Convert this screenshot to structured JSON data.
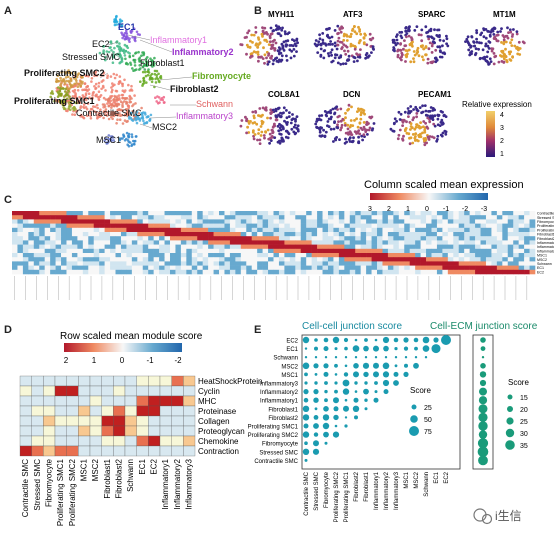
{
  "panels": {
    "A": "A",
    "B": "B",
    "C": "C",
    "D": "D",
    "E": "E"
  },
  "panel_a": {
    "clusters": [
      {
        "label": "EC1",
        "color": "#2233aa",
        "bold": true
      },
      {
        "label": "EC2",
        "color": "#111111",
        "bold": false
      },
      {
        "label": "Inflammatory1",
        "color": "#e070e0",
        "bold": false
      },
      {
        "label": "Inflammatory2",
        "color": "#9933cc",
        "bold": true
      },
      {
        "label": "Stressed SMC",
        "color": "#111111",
        "bold": false
      },
      {
        "label": "Fibroblast1",
        "color": "#111111",
        "bold": false
      },
      {
        "label": "Proliferating SMC2",
        "color": "#111111",
        "bold": true
      },
      {
        "label": "Fibromyocyte",
        "color": "#66aa22",
        "bold": true
      },
      {
        "label": "Fibroblast2",
        "color": "#111111",
        "bold": true
      },
      {
        "label": "Proliferating SMC1",
        "color": "#111111",
        "bold": true
      },
      {
        "label": "Schwann",
        "color": "#e06060",
        "bold": false
      },
      {
        "label": "Contractile SMC",
        "color": "#111111",
        "bold": false
      },
      {
        "label": "Inflammatory3",
        "color": "#bb44cc",
        "bold": false
      },
      {
        "label": "MSC2",
        "color": "#111111",
        "bold": false
      },
      {
        "label": "MSC1",
        "color": "#111111",
        "bold": false
      }
    ]
  },
  "panel_b": {
    "genes": [
      "MYH11",
      "ATF3",
      "SPARC",
      "MT1M",
      "COL8A1",
      "DCN",
      "PECAM1"
    ],
    "legend_title": "Relative expression",
    "legend_ticks": [
      "4",
      "3",
      "2",
      "1"
    ]
  },
  "panel_c": {
    "title": "Column scaled mean expression",
    "scale_ticks": [
      "3",
      "2",
      "1",
      "0",
      "-1",
      "-2",
      "-3"
    ],
    "row_labels": [
      "Contractile SMC",
      "Stressed SMC",
      "Fibromyocyte",
      "Proliferating SMC1",
      "Proliferating SMC2",
      "Fibroblast1",
      "Fibroblast2",
      "Inflammatory1",
      "Inflammatory2",
      "Inflammatory3",
      "MSC1",
      "MSC2",
      "Schwann",
      "EC1",
      "EC2"
    ]
  },
  "panel_d": {
    "title": "Row scaled mean module score",
    "scale_ticks": [
      "2",
      "1",
      "0",
      "-1",
      "-2"
    ],
    "modules": [
      "HeatShockProtein",
      "Cyclin",
      "MHC",
      "Proteinase",
      "Collagen",
      "Proteoglycan",
      "Chemokine",
      "Contraction"
    ],
    "clusters": [
      "Contractile SMC",
      "Stressed SMC",
      "Fibromyocyte",
      "Proliferating SMC1",
      "Proliferating SMC2",
      "MSC1",
      "MSC2",
      "Fibroblast1",
      "Fibroblast2",
      "Schwann",
      "EC1",
      "EC2",
      "Inflammatory1",
      "Inflammatory2",
      "Inflammatory3"
    ]
  },
  "panel_e": {
    "title_left": "Cell-cell junction score",
    "title_right": "Cell-ECM junction score",
    "row_labels": [
      "EC2",
      "EC1",
      "Schwann",
      "MSC2",
      "MSC1",
      "Inflammatory3",
      "Inflammatory2",
      "Inflammatory1",
      "Fibroblast1",
      "Fibroblast2",
      "Proliferating SMC1",
      "Proliferating SMC2",
      "Fibromyocyte",
      "Stressed SMC",
      "Contractile SMC"
    ],
    "col_labels": [
      "Contractile SMC",
      "Stressed SMC",
      "Fibromyocyte",
      "Proliferating SMC2",
      "Proliferating SMC1",
      "Fibroblast2",
      "Fibroblast1",
      "Inflammatory1",
      "Inflammatory2",
      "Inflammatory3",
      "MSC1",
      "MSC2",
      "Schwann",
      "EC1",
      "EC2"
    ],
    "legend_left_title": "Score",
    "legend_left_values": [
      "25",
      "50",
      "75"
    ],
    "legend_right_title": "Score",
    "legend_right_values": [
      "15",
      "20",
      "25",
      "30",
      "35"
    ]
  },
  "colors": {
    "heat_high": "#b2182b",
    "heat_mid": "#f7f7f7",
    "heat_low": "#2c7bb6",
    "dot": "#1a9bb0",
    "dot_ecm": "#1a9b7a"
  },
  "watermark": "i生信"
}
